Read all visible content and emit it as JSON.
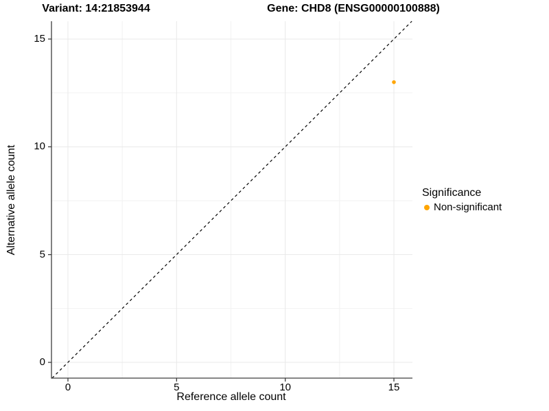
{
  "colors": {
    "background": "#FFFFFF",
    "point": "#FFA500",
    "axis_line": "#3C3C3C",
    "grid_major": "#E8E8E8",
    "grid_minor": "#F2F2F2",
    "text": "#000000",
    "reference_line": "#000000"
  },
  "chart_data": {
    "type": "scatter",
    "title_left": "Variant: 14:21853944",
    "title_right": "Gene: CHD8 (ENSG00000100888)",
    "xlabel": "Reference allele count",
    "ylabel": "Alternative allele count",
    "xlim": [
      -0.76,
      15.85
    ],
    "ylim": [
      -0.73,
      15.83
    ],
    "x_ticks": [
      0,
      5,
      10,
      15
    ],
    "y_ticks": [
      0,
      5,
      10,
      15
    ],
    "x_minor_ticks": [
      2.5,
      7.5,
      12.5
    ],
    "y_minor_ticks": [
      2.5,
      7.5,
      12.5
    ],
    "grid": true,
    "legend_position": "right",
    "legend_title": "Significance",
    "series": [
      {
        "name": "Non-significant",
        "color": "#FFA500",
        "points": [
          {
            "x": 15,
            "y": 13
          }
        ]
      }
    ],
    "reference_line": {
      "kind": "identity",
      "slope": 1,
      "intercept": 0,
      "style": "dashed",
      "color": "#000000"
    }
  }
}
